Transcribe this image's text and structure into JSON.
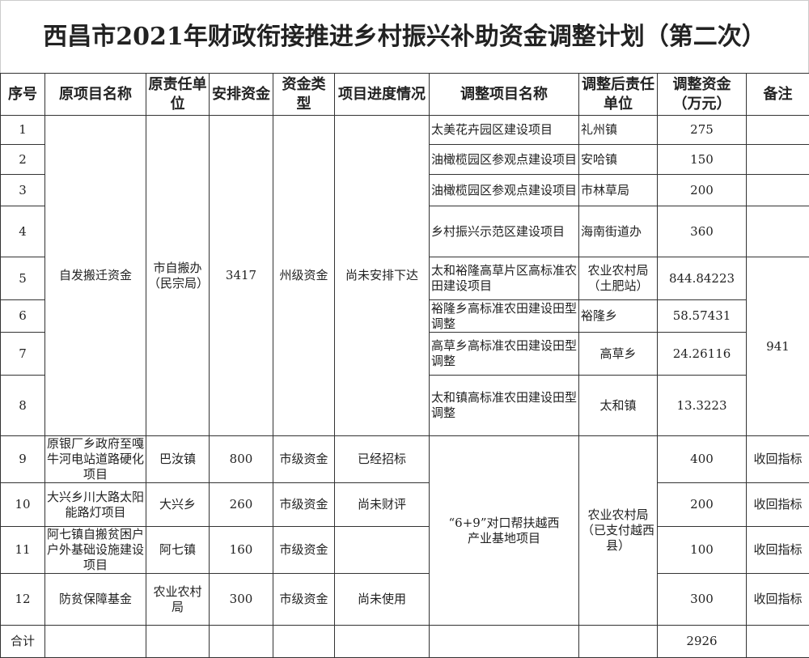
{
  "title": "西昌市2021年财政衔接推进乡村振兴补助资金调整计划（第二次）",
  "headers": [
    "序号",
    "原项目名称",
    "原责任单位",
    "安排资金",
    "资金类型",
    "项目进度情况",
    "调整项目名称",
    "调整后责任单位",
    "调整资金（万元）",
    "备注"
  ],
  "group1": {
    "orig_name": "自发搬迁资金",
    "orig_unit": "市自搬办（民宗局）",
    "funds": "3417",
    "fund_type": "州级资金",
    "progress": "尚未安排下达",
    "remark": "941"
  },
  "rows1": [
    {
      "no": "1",
      "new_name": "太美花卉园区建设项目",
      "new_unit": "礼州镇",
      "amount": "275"
    },
    {
      "no": "2",
      "new_name": "油橄榄园区参观点建设项目",
      "new_unit": "安哈镇",
      "amount": "150"
    },
    {
      "no": "3",
      "new_name": "油橄榄园区参观点建设项目",
      "new_unit": "市林草局",
      "amount": "200"
    },
    {
      "no": "4",
      "new_name": "乡村振兴示范区建设项目",
      "new_unit": "海南街道办",
      "amount": "360"
    },
    {
      "no": "5",
      "new_name": "太和裕隆高草片区高标准农田建设项目",
      "new_unit": "农业农村局（土肥站）",
      "amount": "844.84223"
    },
    {
      "no": "6",
      "new_name": "裕隆乡高标准农田建设田型调整",
      "new_unit": "裕隆乡",
      "amount": "58.57431"
    },
    {
      "no": "7",
      "new_name": "高草乡高标准农田建设田型调整",
      "new_unit": "高草乡",
      "amount": "24.26116"
    },
    {
      "no": "8",
      "new_name": "太和镇高标准农田建设田型调整",
      "new_unit": "太和镇",
      "amount": "13.3223"
    }
  ],
  "group2": {
    "new_name": "“6+9”对口帮扶越西产业基地项目",
    "new_unit": "农业农村局（已支付越西县）"
  },
  "rows2": [
    {
      "no": "9",
      "orig_name": "原银厂乡政府至嘎牛河电站道路硬化项目",
      "orig_unit": "巴汝镇",
      "funds": "800",
      "fund_type": "市级资金",
      "progress": "已经招标",
      "amount": "400",
      "remark": "收回指标"
    },
    {
      "no": "10",
      "orig_name": "大兴乡川大路太阳能路灯项目",
      "orig_unit": "大兴乡",
      "funds": "260",
      "fund_type": "市级资金",
      "progress": "尚未财评",
      "amount": "200",
      "remark": "收回指标"
    },
    {
      "no": "11",
      "orig_name": "阿七镇自搬贫困户户外基础设施建设项目",
      "orig_unit": "阿七镇",
      "funds": "160",
      "fund_type": "市级资金",
      "progress": "",
      "amount": "100",
      "remark": "收回指标"
    },
    {
      "no": "12",
      "orig_name": "防贫保障基金",
      "orig_unit": "农业农村局",
      "funds": "300",
      "fund_type": "市级资金",
      "progress": "尚未使用",
      "amount": "300",
      "remark": "收回指标"
    }
  ],
  "total": {
    "label": "合计",
    "amount": "2926"
  }
}
